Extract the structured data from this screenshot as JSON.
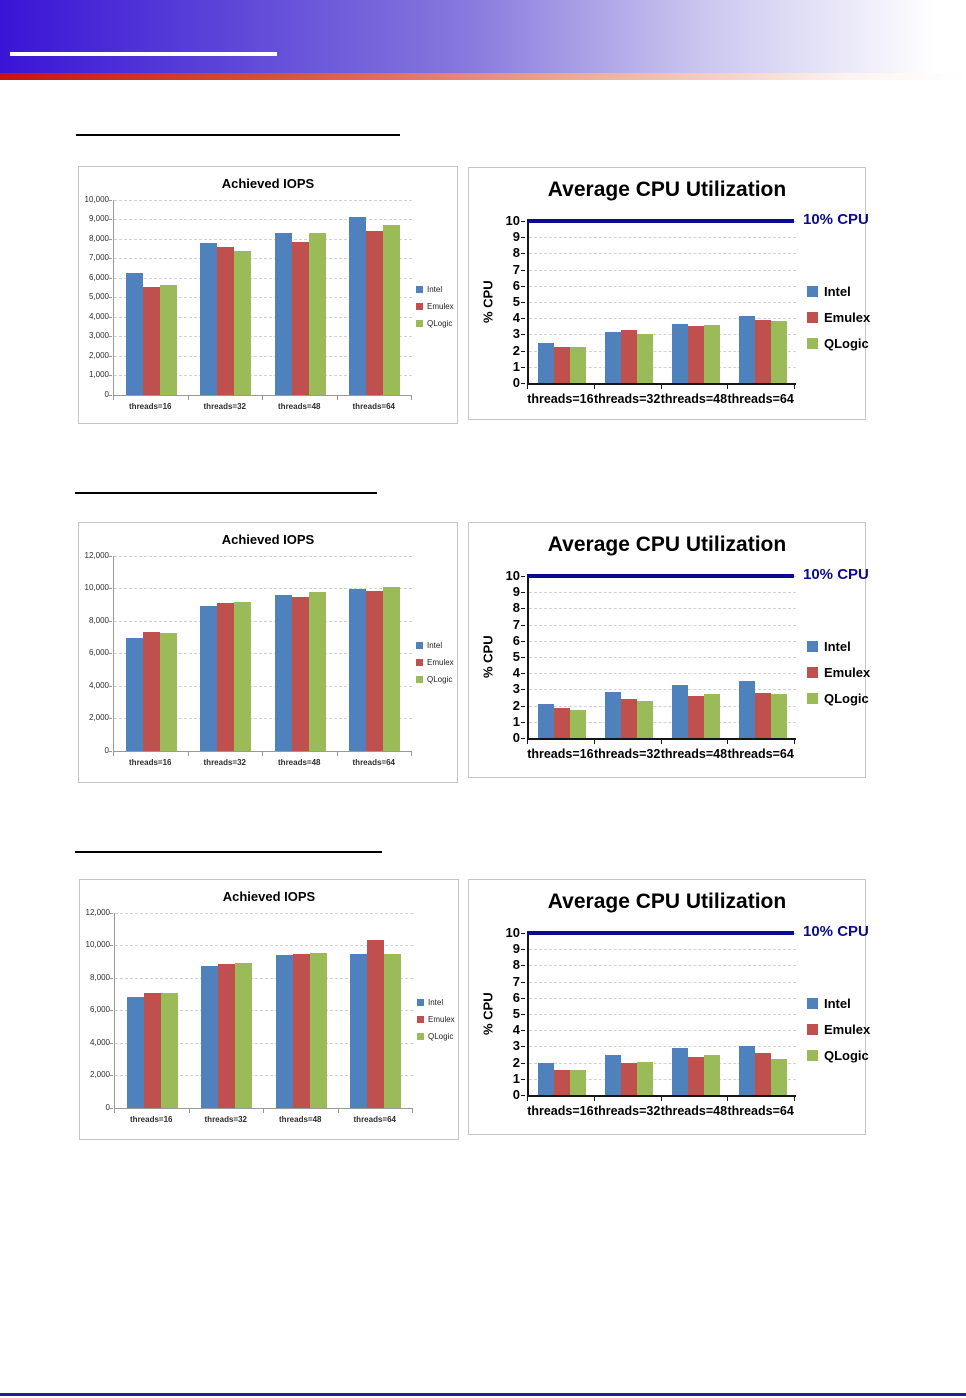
{
  "colors": {
    "intel": "#4f81bd",
    "emulex": "#c0504d",
    "qlogic": "#9bbb59",
    "reference_line": "#0b0b92",
    "header_gradient_start": "#3a14d6",
    "header_red_stripe": "#cc1010",
    "footer_line": "#2a1c99"
  },
  "chart_data": [
    {
      "type": "bar",
      "title": "Achieved IOPS",
      "categories": [
        "threads=16",
        "threads=32",
        "threads=48",
        "threads=64"
      ],
      "series": [
        {
          "name": "Intel",
          "color": "#4f81bd",
          "values": [
            6250,
            7800,
            8300,
            9150
          ]
        },
        {
          "name": "Emulex",
          "color": "#c0504d",
          "values": [
            5550,
            7600,
            7850,
            8400
          ]
        },
        {
          "name": "QLogic",
          "color": "#9bbb59",
          "values": [
            5650,
            7400,
            8300,
            8700
          ]
        }
      ],
      "xlabel": "",
      "ylabel": "",
      "ylim": [
        0,
        10000
      ],
      "ytick_step": 1000,
      "ytick_labels": [
        "0",
        "1,000",
        "2,000",
        "3,000",
        "4,000",
        "5,000",
        "6,000",
        "7,000",
        "8,000",
        "9,000",
        "10,000"
      ],
      "grid": true,
      "legend_position": "right"
    },
    {
      "type": "bar",
      "title": "Average CPU Utilization",
      "categories": [
        "threads=16",
        "threads=32",
        "threads=48",
        "threads=64"
      ],
      "series": [
        {
          "name": "Intel",
          "color": "#4f81bd",
          "values": [
            2.45,
            3.15,
            3.65,
            4.15
          ]
        },
        {
          "name": "Emulex",
          "color": "#c0504d",
          "values": [
            2.25,
            3.25,
            3.55,
            3.9
          ]
        },
        {
          "name": "QLogic",
          "color": "#9bbb59",
          "values": [
            2.2,
            3.0,
            3.6,
            3.8
          ]
        }
      ],
      "xlabel": "",
      "ylabel": "% CPU",
      "ylim": [
        0,
        10
      ],
      "ytick_step": 1,
      "ytick_labels": [
        "0",
        "1",
        "2",
        "3",
        "4",
        "5",
        "6",
        "7",
        "8",
        "9",
        "10"
      ],
      "grid": true,
      "legend_position": "right",
      "ref_line": {
        "value": 10,
        "label": "10% CPU",
        "color": "#0b0b92"
      }
    },
    {
      "type": "bar",
      "title": "Achieved IOPS",
      "categories": [
        "threads=16",
        "threads=32",
        "threads=48",
        "threads=64"
      ],
      "series": [
        {
          "name": "Intel",
          "color": "#4f81bd",
          "values": [
            6950,
            8900,
            9600,
            9950
          ]
        },
        {
          "name": "Emulex",
          "color": "#c0504d",
          "values": [
            7300,
            9100,
            9450,
            9850
          ]
        },
        {
          "name": "QLogic",
          "color": "#9bbb59",
          "values": [
            7250,
            9200,
            9800,
            10100
          ]
        }
      ],
      "xlabel": "",
      "ylabel": "",
      "ylim": [
        0,
        12000
      ],
      "ytick_step": 2000,
      "ytick_labels": [
        "0",
        "2,000",
        "4,000",
        "6,000",
        "8,000",
        "10,000",
        "12,000"
      ],
      "grid": true,
      "legend_position": "right"
    },
    {
      "type": "bar",
      "title": "Average CPU Utilization",
      "categories": [
        "threads=16",
        "threads=32",
        "threads=48",
        "threads=64"
      ],
      "series": [
        {
          "name": "Intel",
          "color": "#4f81bd",
          "values": [
            2.1,
            2.85,
            3.25,
            3.5
          ]
        },
        {
          "name": "Emulex",
          "color": "#c0504d",
          "values": [
            1.85,
            2.4,
            2.6,
            2.75
          ]
        },
        {
          "name": "QLogic",
          "color": "#9bbb59",
          "values": [
            1.75,
            2.3,
            2.7,
            2.7
          ]
        }
      ],
      "xlabel": "",
      "ylabel": "% CPU",
      "ylim": [
        0,
        10
      ],
      "ytick_step": 1,
      "ytick_labels": [
        "0",
        "1",
        "2",
        "3",
        "4",
        "5",
        "6",
        "7",
        "8",
        "9",
        "10"
      ],
      "grid": true,
      "legend_position": "right",
      "ref_line": {
        "value": 10,
        "label": "10% CPU",
        "color": "#0b0b92"
      }
    },
    {
      "type": "bar",
      "title": "Achieved IOPS",
      "categories": [
        "threads=16",
        "threads=32",
        "threads=48",
        "threads=64"
      ],
      "series": [
        {
          "name": "Intel",
          "color": "#4f81bd",
          "values": [
            6850,
            8750,
            9400,
            9450
          ]
        },
        {
          "name": "Emulex",
          "color": "#c0504d",
          "values": [
            7100,
            8850,
            9450,
            10350
          ]
        },
        {
          "name": "QLogic",
          "color": "#9bbb59",
          "values": [
            7050,
            8950,
            9550,
            9450
          ]
        }
      ],
      "xlabel": "",
      "ylabel": "",
      "ylim": [
        0,
        12000
      ],
      "ytick_step": 2000,
      "ytick_labels": [
        "0",
        "2,000",
        "4,000",
        "6,000",
        "8,000",
        "10,000",
        "12,000"
      ],
      "grid": true,
      "legend_position": "right"
    },
    {
      "type": "bar",
      "title": "Average CPU Utilization",
      "categories": [
        "threads=16",
        "threads=32",
        "threads=48",
        "threads=64"
      ],
      "series": [
        {
          "name": "Intel",
          "color": "#4f81bd",
          "values": [
            1.95,
            2.45,
            2.9,
            3.0
          ]
        },
        {
          "name": "Emulex",
          "color": "#c0504d",
          "values": [
            1.55,
            2.0,
            2.35,
            2.6
          ]
        },
        {
          "name": "QLogic",
          "color": "#9bbb59",
          "values": [
            1.55,
            2.05,
            2.45,
            2.2
          ]
        }
      ],
      "xlabel": "",
      "ylabel": "% CPU",
      "ylim": [
        0,
        10
      ],
      "ytick_step": 1,
      "ytick_labels": [
        "0",
        "1",
        "2",
        "3",
        "4",
        "5",
        "6",
        "7",
        "8",
        "9",
        "10"
      ],
      "grid": true,
      "legend_position": "right",
      "ref_line": {
        "value": 10,
        "label": "10% CPU",
        "color": "#0b0b92"
      }
    }
  ]
}
